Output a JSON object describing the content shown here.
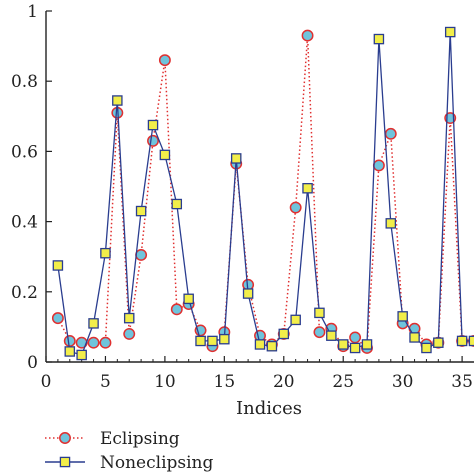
{
  "chart_data": {
    "type": "line",
    "title": "",
    "xlabel": "Indices",
    "ylabel": "",
    "xlim": [
      0,
      36
    ],
    "ylim": [
      0,
      1
    ],
    "x_ticks": [
      0,
      5,
      10,
      15,
      20,
      25,
      30,
      35
    ],
    "x_tick_labels": [
      "0",
      "5",
      "10",
      "15",
      "20",
      "25",
      "30",
      "35"
    ],
    "y_ticks": [
      0,
      0.2,
      0.4,
      0.6,
      0.8,
      1
    ],
    "y_tick_labels": [
      "0",
      "0.2",
      "0.4",
      "0.6",
      "0.8",
      "1"
    ],
    "grid": false,
    "legend_position": "bottom-left",
    "x": [
      1,
      2,
      3,
      4,
      5,
      6,
      7,
      8,
      9,
      10,
      11,
      12,
      13,
      14,
      15,
      16,
      17,
      18,
      19,
      20,
      21,
      22,
      23,
      24,
      25,
      26,
      27,
      28,
      29,
      30,
      31,
      32,
      33,
      34,
      35,
      36
    ],
    "series": [
      {
        "name": "Eclipsing",
        "line_color": "#e03030",
        "line_style": "dotted",
        "marker": "circle",
        "marker_fill": "#6fc4dc",
        "marker_edge": "#e03030",
        "values": [
          0.125,
          0.06,
          0.055,
          0.055,
          0.055,
          0.71,
          0.08,
          0.305,
          0.63,
          0.86,
          0.15,
          0.165,
          0.09,
          0.045,
          0.085,
          0.565,
          0.22,
          0.075,
          0.05,
          0.08,
          0.44,
          0.93,
          0.085,
          0.095,
          0.045,
          0.07,
          0.04,
          0.56,
          0.65,
          0.11,
          0.095,
          0.05,
          0.055,
          0.695,
          0.06,
          0.06
        ]
      },
      {
        "name": "Noneclipsing",
        "line_color": "#2a3d8f",
        "line_style": "solid",
        "marker": "square",
        "marker_fill": "#f2ee4a",
        "marker_edge": "#2a3d8f",
        "values": [
          0.275,
          0.03,
          0.02,
          0.11,
          0.31,
          0.745,
          0.125,
          0.43,
          0.675,
          0.59,
          0.45,
          0.18,
          0.06,
          0.06,
          0.065,
          0.58,
          0.195,
          0.05,
          0.045,
          0.08,
          0.12,
          0.495,
          0.14,
          0.075,
          0.05,
          0.04,
          0.05,
          0.92,
          0.395,
          0.13,
          0.07,
          0.04,
          0.055,
          0.94,
          0.06,
          0.06
        ]
      }
    ]
  }
}
